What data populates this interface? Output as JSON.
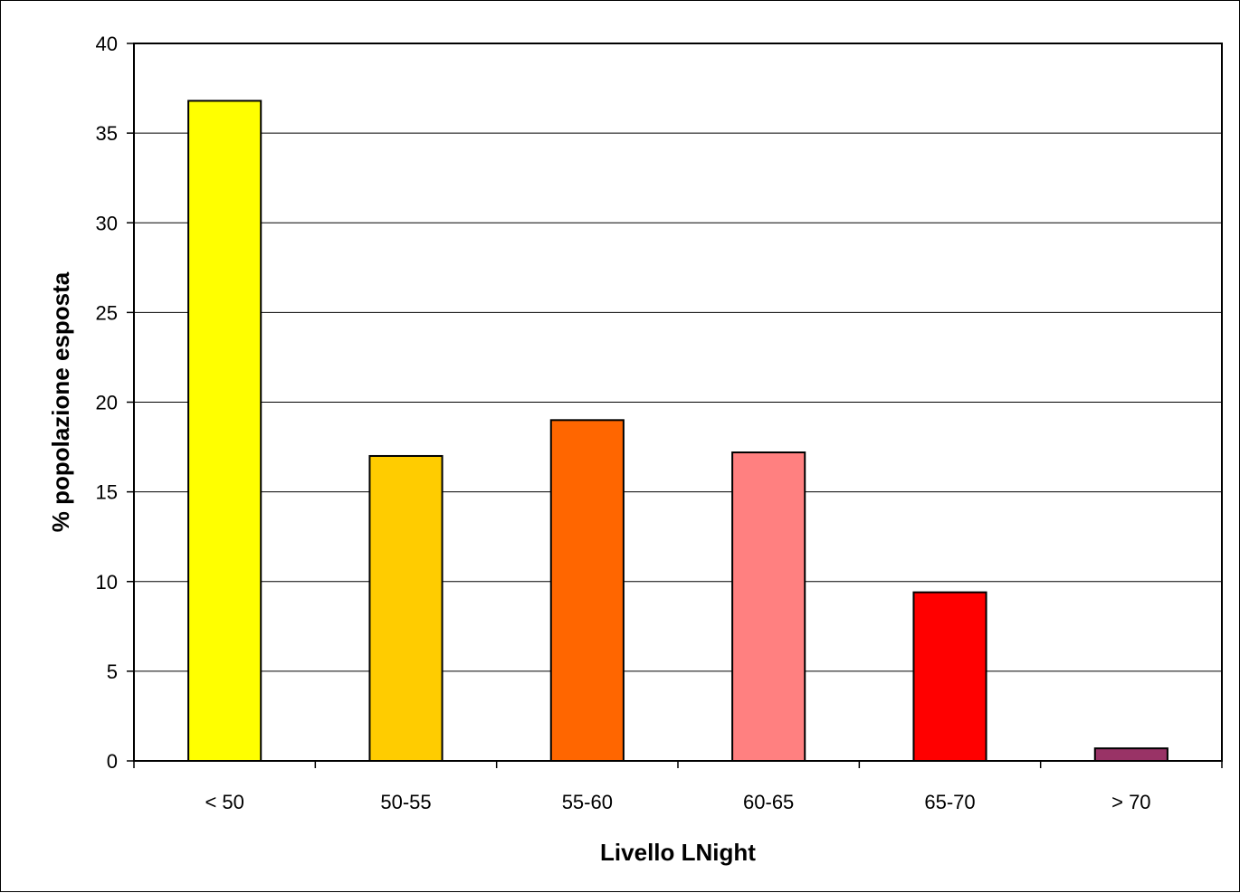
{
  "chart_data": {
    "type": "bar",
    "title": "",
    "xlabel": "Livello LNight",
    "ylabel": "% popolazione esposta",
    "categories": [
      "< 50",
      "50-55",
      "55-60",
      "60-65",
      "65-70",
      "> 70"
    ],
    "values": [
      36.8,
      17.0,
      19.0,
      17.2,
      9.4,
      0.7
    ],
    "colors": [
      "#FFFF00",
      "#FFCC00",
      "#FF6600",
      "#FF8080",
      "#FF0000",
      "#993366"
    ],
    "ylim": [
      0,
      40
    ],
    "yticks": [
      0,
      5,
      10,
      15,
      20,
      25,
      30,
      35,
      40
    ],
    "grid": true,
    "legend": "none"
  }
}
